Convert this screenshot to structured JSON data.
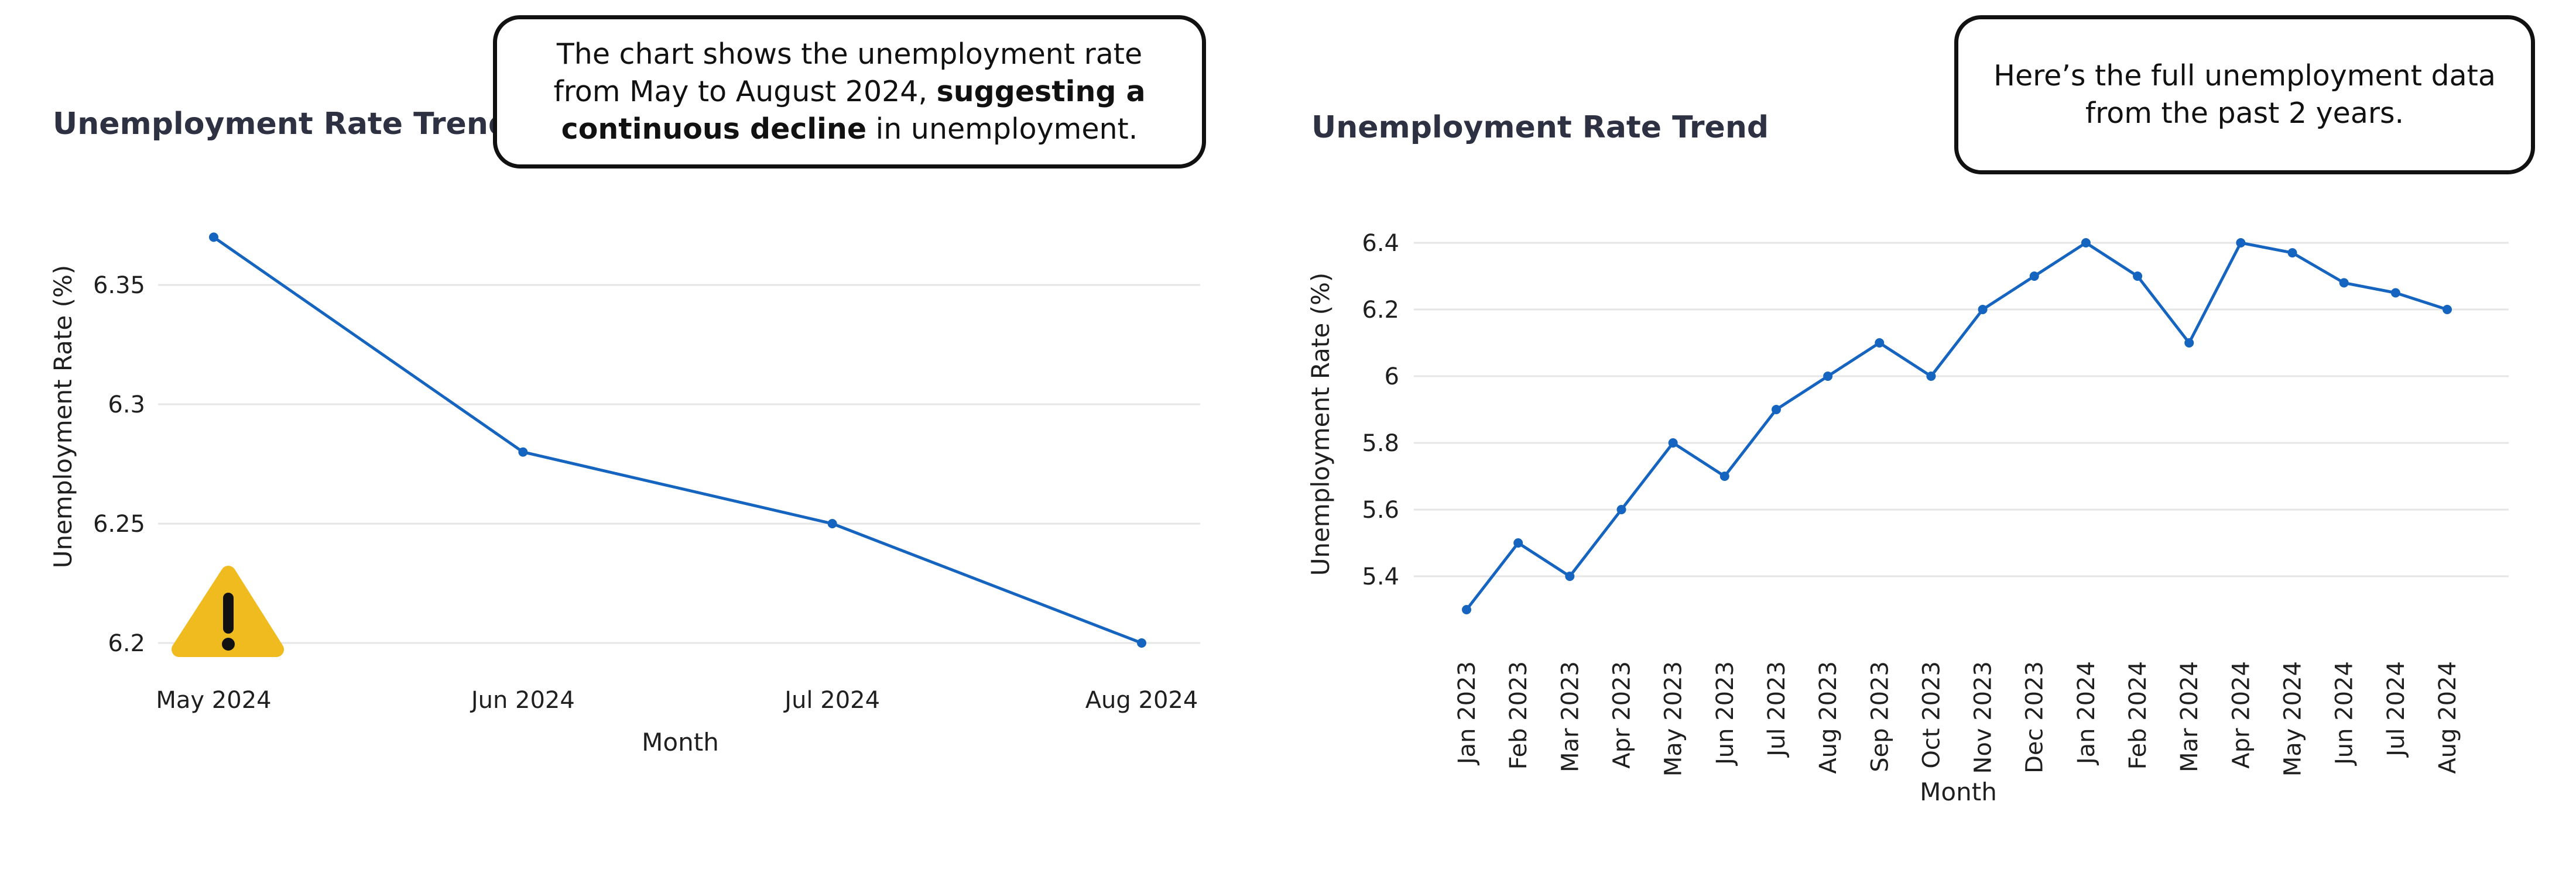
{
  "chart_data": [
    {
      "type": "line",
      "title": "Unemployment Rate Trend",
      "xlabel": "Month",
      "ylabel": "Unemployment Rate (%)",
      "categories": [
        "May 2024",
        "Jun 2024",
        "Jul 2024",
        "Aug 2024"
      ],
      "values": [
        6.37,
        6.28,
        6.25,
        6.2
      ],
      "yticks": [
        "6.2",
        "6.25",
        "6.3",
        "6.35"
      ],
      "ylim": [
        6.2,
        6.35
      ],
      "grid": true,
      "annotation": {
        "icon": "warning-icon",
        "text_before": "The chart shows the unemployment rate from May to August 2024, ",
        "text_bold": "suggesting a continuous decline",
        "text_after": " in unemployment."
      }
    },
    {
      "type": "line",
      "title": "Unemployment Rate Trend",
      "xlabel": "Month",
      "ylabel": "Unemployment Rate (%)",
      "categories": [
        "Jan 2023",
        "Feb 2023",
        "Mar 2023",
        "Apr 2023",
        "May 2023",
        "Jun 2023",
        "Jul 2023",
        "Aug 2023",
        "Sep 2023",
        "Oct 2023",
        "Nov 2023",
        "Dec 2023",
        "Jan 2024",
        "Feb 2024",
        "Mar 2024",
        "Apr 2024",
        "May 2024",
        "Jun 2024",
        "Jul 2024",
        "Aug 2024"
      ],
      "values": [
        5.3,
        5.5,
        5.4,
        5.6,
        5.8,
        5.7,
        5.9,
        6.0,
        6.1,
        6.0,
        6.2,
        6.3,
        6.4,
        6.3,
        6.1,
        6.4,
        6.37,
        6.28,
        6.25,
        6.2
      ],
      "yticks": [
        "5.4",
        "5.6",
        "5.8",
        "6",
        "6.2",
        "6.4"
      ],
      "ylim": [
        5.4,
        6.4
      ],
      "grid": true,
      "annotation": {
        "text": "Here’s the full unemployment data from the past 2 years."
      }
    }
  ]
}
